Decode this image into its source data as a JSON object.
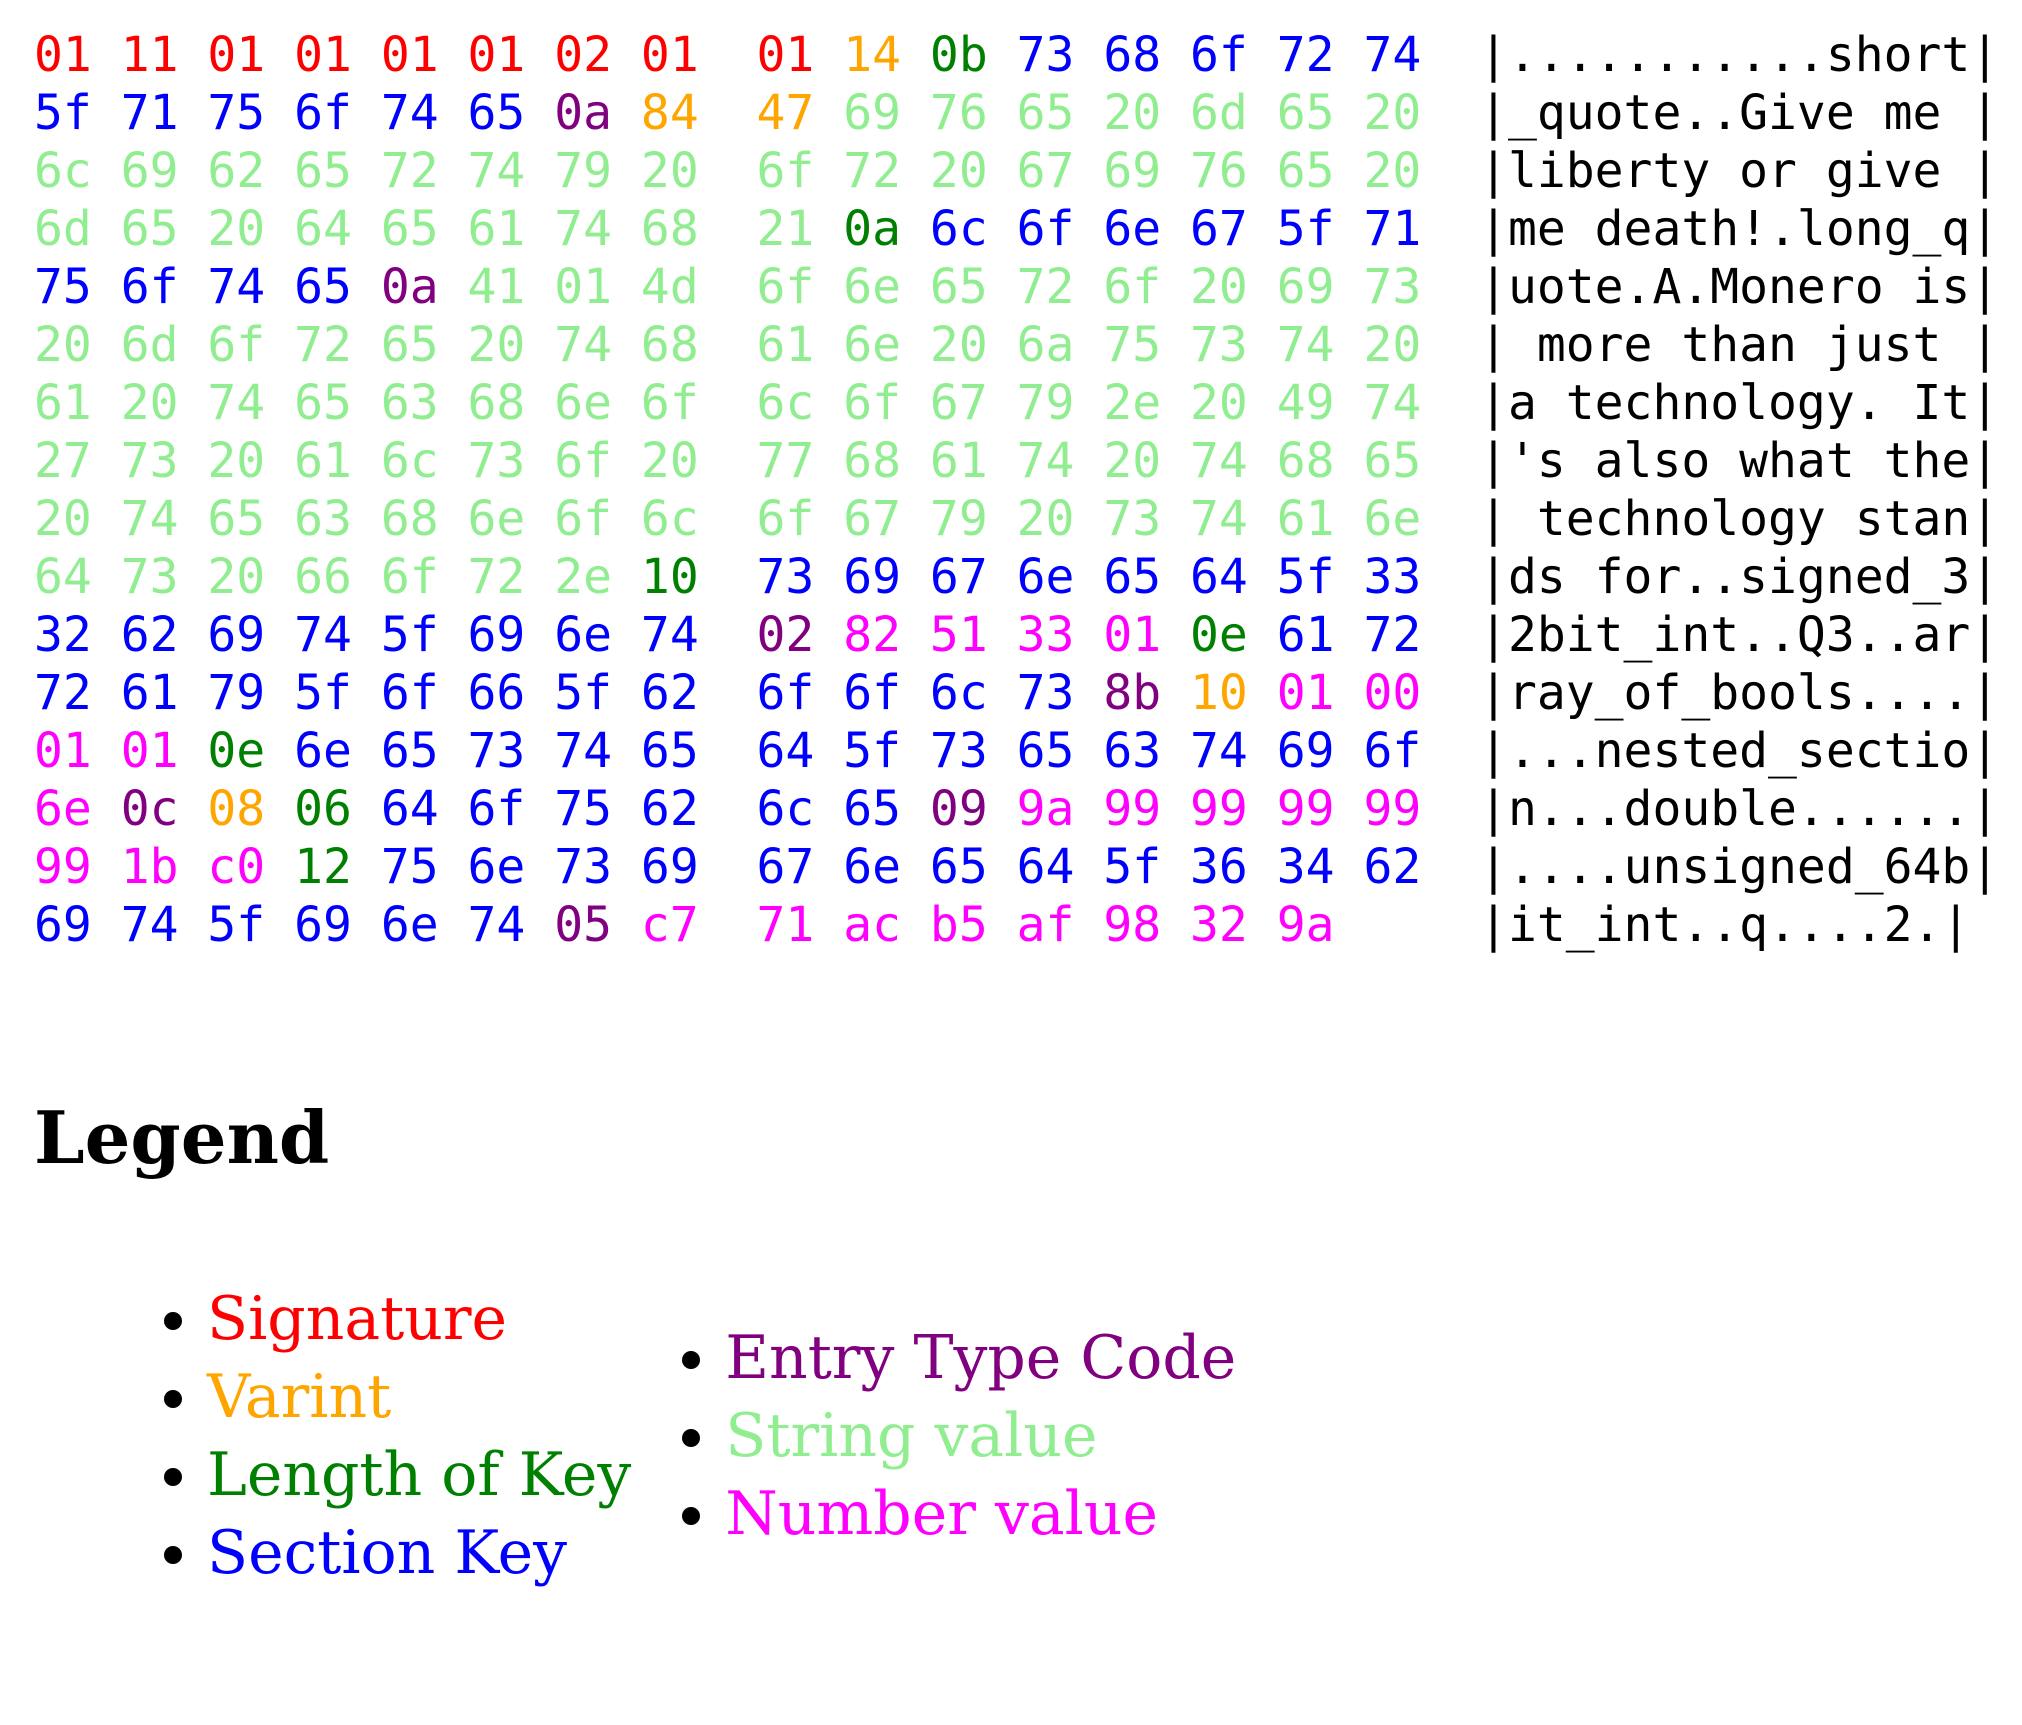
{
  "colors": {
    "S": "#ff0000",
    "V": "#ffa500",
    "L": "#008000",
    "K": "#0000ff",
    "T": "#800080",
    "G": "#90ee90",
    "N": "#ff00ff"
  },
  "dump": {
    "rows": [
      {
        "hex": "01 11 01 01 01 01 02 01 01 14 0b 73 68 6f 72 74",
        "cats": "SSSSSSSSSVLKKKKK",
        "ascii": "...........short"
      },
      {
        "hex": "5f 71 75 6f 74 65 0a 84 47 69 76 65 20 6d 65 20",
        "cats": "KKKKKKTVVGGGGGGG",
        "ascii": "_quote..Give me "
      },
      {
        "hex": "6c 69 62 65 72 74 79 20 6f 72 20 67 69 76 65 20",
        "cats": "GGGGGGGGGGGGGGGG",
        "ascii": "liberty or give "
      },
      {
        "hex": "6d 65 20 64 65 61 74 68 21 0a 6c 6f 6e 67 5f 71",
        "cats": "GGGGGGGGGLKKKKKK",
        "ascii": "me death!.long_q"
      },
      {
        "hex": "75 6f 74 65 0a 41 01 4d 6f 6e 65 72 6f 20 69 73",
        "cats": "KKKKTGGGGGGGGGGG",
        "ascii": "uote.A.Monero is"
      },
      {
        "hex": "20 6d 6f 72 65 20 74 68 61 6e 20 6a 75 73 74 20",
        "cats": "GGGGGGGGGGGGGGGG",
        "ascii": " more than just "
      },
      {
        "hex": "61 20 74 65 63 68 6e 6f 6c 6f 67 79 2e 20 49 74",
        "cats": "GGGGGGGGGGGGGGGG",
        "ascii": "a technology. It"
      },
      {
        "hex": "27 73 20 61 6c 73 6f 20 77 68 61 74 20 74 68 65",
        "cats": "GGGGGGGGGGGGGGGG",
        "ascii": "'s also what the"
      },
      {
        "hex": "20 74 65 63 68 6e 6f 6c 6f 67 79 20 73 74 61 6e",
        "cats": "GGGGGGGGGGGGGGGG",
        "ascii": " technology stan"
      },
      {
        "hex": "64 73 20 66 6f 72 2e 10 73 69 67 6e 65 64 5f 33",
        "cats": "GGGGGGGLKKKKKKKK",
        "ascii": "ds for..signed_3"
      },
      {
        "hex": "32 62 69 74 5f 69 6e 74 02 82 51 33 01 0e 61 72",
        "cats": "KKKKKKKKTNNNNLKK",
        "ascii": "2bit_int..Q3..ar"
      },
      {
        "hex": "72 61 79 5f 6f 66 5f 62 6f 6f 6c 73 8b 10 01 00",
        "cats": "KKKKKKKKKKKKTVNN",
        "ascii": "ray_of_bools...."
      },
      {
        "hex": "01 01 0e 6e 65 73 74 65 64 5f 73 65 63 74 69 6f",
        "cats": "NNLKKKKKKKKKKKKK",
        "ascii": "...nested_sectio"
      },
      {
        "hex": "6e 0c 08 06 64 6f 75 62 6c 65 09 9a 99 99 99 99",
        "cats": "NTVLKKKKKKTNNNNN",
        "ascii": "n...double......"
      },
      {
        "hex": "99 1b c0 12 75 6e 73 69 67 6e 65 64 5f 36 34 62",
        "cats": "NNNLKKKKKKKKKKKK",
        "ascii": "....unsigned_64b"
      },
      {
        "hex": "69 74 5f 69 6e 74 05 c7 71 ac b5 af 98 32 9a",
        "cats": "KKKKKKTNNNNNNNN",
        "ascii": "it_int..q....2."
      }
    ]
  },
  "legend": {
    "title": "Legend",
    "left": [
      {
        "label": "Signature",
        "cat": "S"
      },
      {
        "label": "Varint",
        "cat": "V"
      },
      {
        "label": "Length of Key",
        "cat": "L"
      },
      {
        "label": "Section Key",
        "cat": "K"
      }
    ],
    "right": [
      {
        "label": "Entry Type Code",
        "cat": "T"
      },
      {
        "label": "String value",
        "cat": "G"
      },
      {
        "label": "Number value",
        "cat": "N"
      }
    ]
  }
}
